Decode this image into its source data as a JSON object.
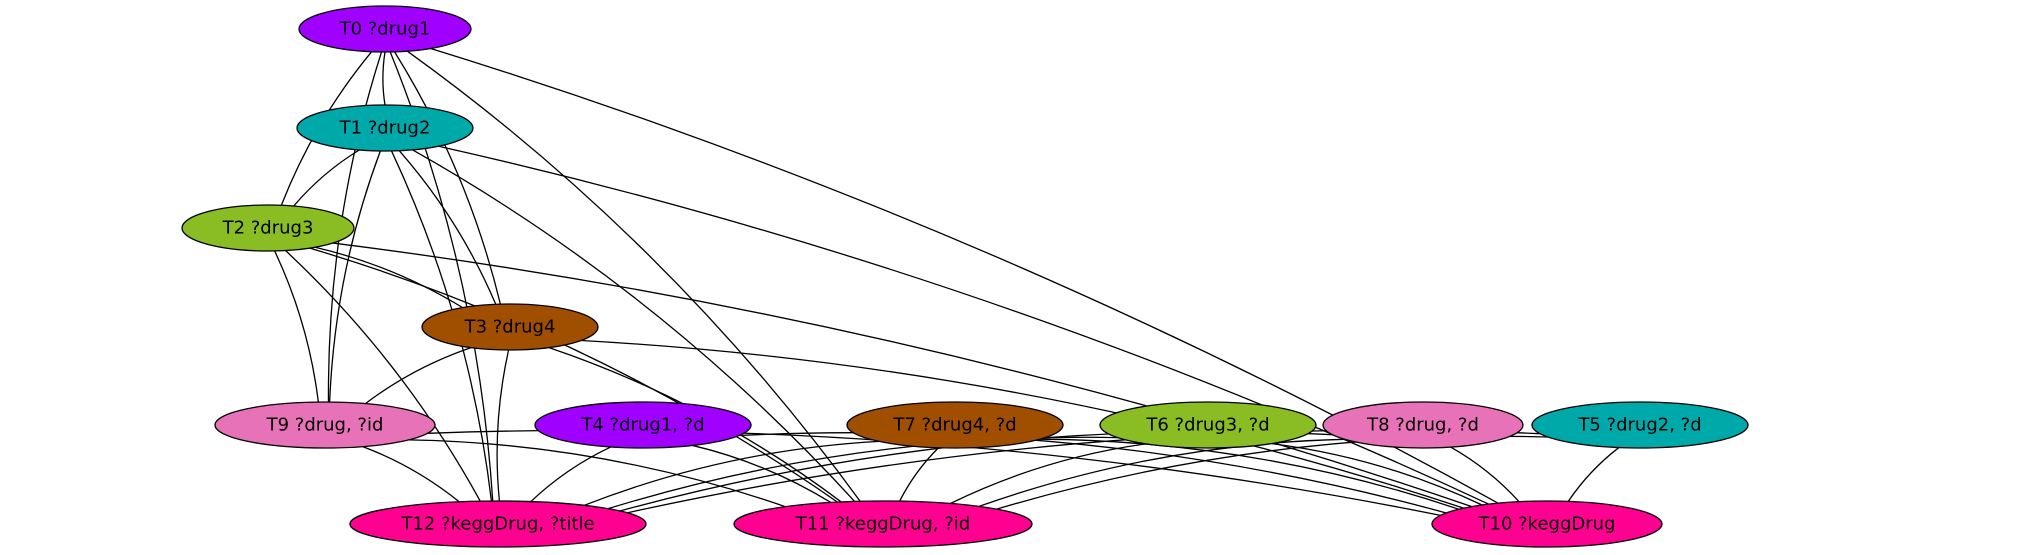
{
  "graph": {
    "nodes": [
      {
        "id": "T0",
        "label": "T0 ?drug1",
        "color": "#a000ff"
      },
      {
        "id": "T1",
        "label": "T1 ?drug2",
        "color": "#00a9a9"
      },
      {
        "id": "T2",
        "label": "T2 ?drug3",
        "color": "#8abd24"
      },
      {
        "id": "T3",
        "label": "T3 ?drug4",
        "color": "#a04f00"
      },
      {
        "id": "T4",
        "label": "T4 ?drug1, ?d",
        "color": "#a000ff"
      },
      {
        "id": "T5",
        "label": "T5 ?drug2, ?d",
        "color": "#00a9a9"
      },
      {
        "id": "T6",
        "label": "T6 ?drug3, ?d",
        "color": "#8abd24"
      },
      {
        "id": "T7",
        "label": "T7 ?drug4, ?d",
        "color": "#a04f00"
      },
      {
        "id": "T8",
        "label": "T8 ?drug, ?d",
        "color": "#e872b8"
      },
      {
        "id": "T9",
        "label": "T9 ?drug, ?id",
        "color": "#e872b8"
      },
      {
        "id": "T10",
        "label": "T10 ?keggDrug",
        "color": "#ff0090"
      },
      {
        "id": "T11",
        "label": "T11 ?keggDrug, ?id",
        "color": "#ff0090"
      },
      {
        "id": "T12",
        "label": "T12 ?keggDrug, ?title",
        "color": "#ff0090"
      }
    ],
    "edges": [
      [
        "T0",
        "T1"
      ],
      [
        "T0",
        "T2"
      ],
      [
        "T0",
        "T3"
      ],
      [
        "T0",
        "T9"
      ],
      [
        "T0",
        "T12"
      ],
      [
        "T0",
        "T11"
      ],
      [
        "T0",
        "T10"
      ],
      [
        "T1",
        "T2"
      ],
      [
        "T1",
        "T3"
      ],
      [
        "T1",
        "T9"
      ],
      [
        "T1",
        "T12"
      ],
      [
        "T1",
        "T11"
      ],
      [
        "T1",
        "T10"
      ],
      [
        "T2",
        "T3"
      ],
      [
        "T2",
        "T9"
      ],
      [
        "T2",
        "T12"
      ],
      [
        "T2",
        "T11"
      ],
      [
        "T2",
        "T10"
      ],
      [
        "T3",
        "T9"
      ],
      [
        "T3",
        "T12"
      ],
      [
        "T3",
        "T11"
      ],
      [
        "T3",
        "T10"
      ],
      [
        "T9",
        "T12"
      ],
      [
        "T9",
        "T11"
      ],
      [
        "T9",
        "T10"
      ],
      [
        "T4",
        "T12"
      ],
      [
        "T4",
        "T11"
      ],
      [
        "T4",
        "T10"
      ],
      [
        "T7",
        "T12"
      ],
      [
        "T7",
        "T11"
      ],
      [
        "T7",
        "T10"
      ],
      [
        "T6",
        "T12"
      ],
      [
        "T6",
        "T11"
      ],
      [
        "T6",
        "T10"
      ],
      [
        "T8",
        "T12"
      ],
      [
        "T8",
        "T11"
      ],
      [
        "T8",
        "T10"
      ],
      [
        "T5",
        "T12"
      ],
      [
        "T5",
        "T11"
      ],
      [
        "T5",
        "T10"
      ]
    ]
  }
}
